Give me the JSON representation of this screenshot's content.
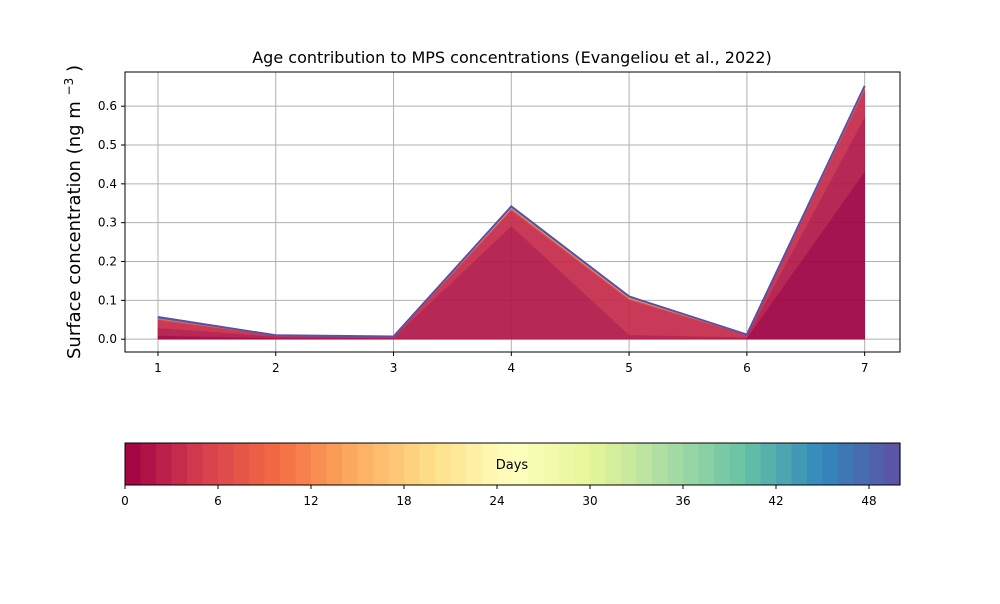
{
  "chart_data": {
    "type": "area",
    "title": "Age contribution to MPS concentrations (Evangeliou et al., 2022)",
    "xlabel": "",
    "ylabel": "Surface concentration (ng m",
    "ylabel_unit_superscript": "−3",
    "ylabel_close": ")",
    "x": [
      1,
      2,
      3,
      4,
      5,
      6,
      7
    ],
    "x_ticks": [
      1,
      2,
      3,
      4,
      5,
      6,
      7
    ],
    "xlim": [
      0.72,
      7.3
    ],
    "ylim": [
      -0.033,
      0.688
    ],
    "y_ticks": [
      0.0,
      0.1,
      0.2,
      0.3,
      0.4,
      0.5,
      0.6
    ],
    "y_tick_labels": [
      "0.0",
      "0.1",
      "0.2",
      "0.3",
      "0.4",
      "0.5",
      "0.6"
    ],
    "grid": true,
    "colormap": "Spectral",
    "series": [
      {
        "color": "#9e0142",
        "values": [
          0.008,
          0.002,
          0.001,
          0.0,
          0.0,
          0.001,
          0.43
        ]
      },
      {
        "color": "#b01647",
        "values": [
          0.02,
          0.004,
          0.002,
          0.29,
          0.01,
          0.003,
          0.14
        ]
      },
      {
        "color": "#c42a4a",
        "values": [
          0.02,
          0.003,
          0.002,
          0.04,
          0.09,
          0.006,
          0.07
        ]
      },
      {
        "color": "#d53e4f",
        "values": [
          0.004,
          0.0,
          0.001,
          0.005,
          0.004,
          0.001,
          0.005
        ]
      },
      {
        "color": "#f46d43",
        "values": [
          0.002,
          0.0,
          0.0,
          0.002,
          0.002,
          0.0,
          0.002
        ]
      },
      {
        "color": "#fdae61",
        "values": [
          0.0,
          0.0,
          0.0,
          0.001,
          0.001,
          0.0,
          0.001
        ]
      },
      {
        "color": "#66c2a5",
        "values": [
          0.0,
          0.0,
          0.0,
          0.001,
          0.001,
          0.0,
          0.001
        ]
      },
      {
        "color": "#3288bd",
        "values": [
          0.001,
          0.0,
          0.0,
          0.001,
          0.001,
          0.0,
          0.001
        ]
      },
      {
        "color": "#5e4fa2",
        "values": [
          0.002,
          0.001,
          0.001,
          0.002,
          0.001,
          0.001,
          0.002
        ]
      }
    ],
    "colorbar": {
      "label": "Days",
      "min": 0,
      "max": 50,
      "n_bins": 50,
      "ticks": [
        0,
        6,
        12,
        18,
        24,
        30,
        36,
        42,
        48
      ],
      "stops": [
        "#9e0142",
        "#d53e4f",
        "#f46d43",
        "#fdae61",
        "#fee08b",
        "#ffffbf",
        "#e6f598",
        "#abdda4",
        "#66c2a5",
        "#3288bd",
        "#5e4fa2"
      ]
    }
  }
}
